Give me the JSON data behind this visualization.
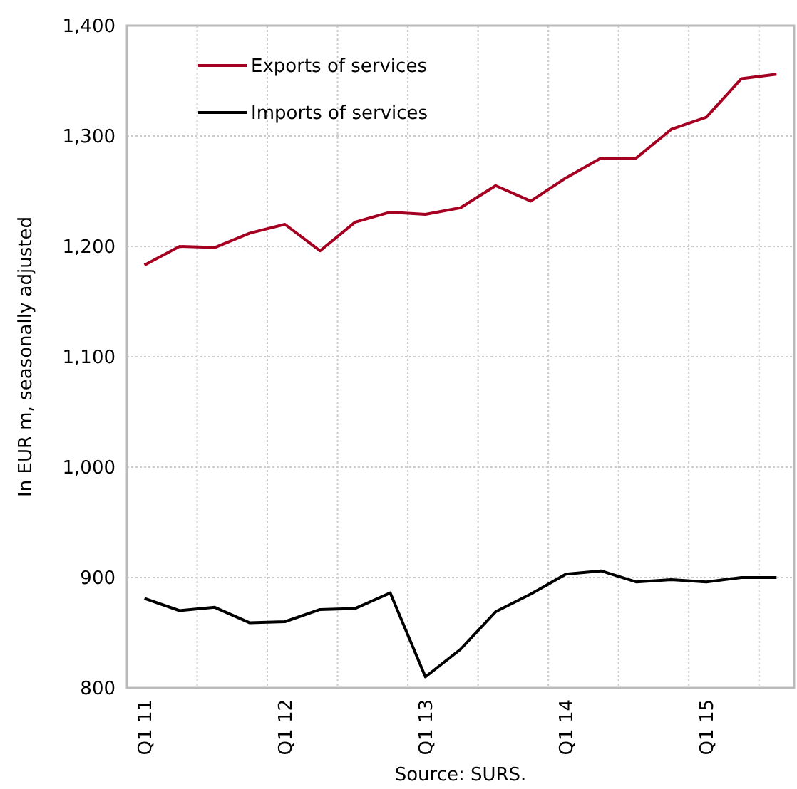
{
  "chart_data": {
    "type": "line",
    "ylabel": "In EUR m, seasonally adjusted",
    "categories": [
      "Q1 11",
      null,
      null,
      null,
      "Q1 12",
      null,
      null,
      null,
      "Q1 13",
      null,
      null,
      null,
      "Q1 14",
      null,
      null,
      null,
      "Q1 15",
      null,
      null
    ],
    "series": [
      {
        "name": "Exports of services",
        "color": "#a50021",
        "values": [
          1183,
          1200,
          1199,
          1212,
          1220,
          1196,
          1222,
          1231,
          1229,
          1235,
          1255,
          1241,
          1262,
          1280,
          1280,
          1306,
          1317,
          1352,
          1356
        ]
      },
      {
        "name": "Imports of services",
        "color": "#000000",
        "values": [
          881,
          870,
          873,
          859,
          860,
          871,
          872,
          886,
          810,
          835,
          869,
          885,
          903,
          906,
          896,
          898,
          896,
          900,
          900
        ]
      }
    ],
    "ylim": [
      800,
      1400
    ],
    "yticks": [
      {
        "value": 800,
        "label": "800"
      },
      {
        "value": 900,
        "label": "900"
      },
      {
        "value": 1000,
        "label": "1,000"
      },
      {
        "value": 1100,
        "label": "1,100"
      },
      {
        "value": 1200,
        "label": "1,200"
      },
      {
        "value": 1300,
        "label": "1,300"
      },
      {
        "value": 1400,
        "label": "1,400"
      }
    ],
    "grid": true,
    "legend": "top left",
    "marker": "none",
    "line_style": "solid",
    "annotations": [
      "Source: SURS."
    ]
  }
}
